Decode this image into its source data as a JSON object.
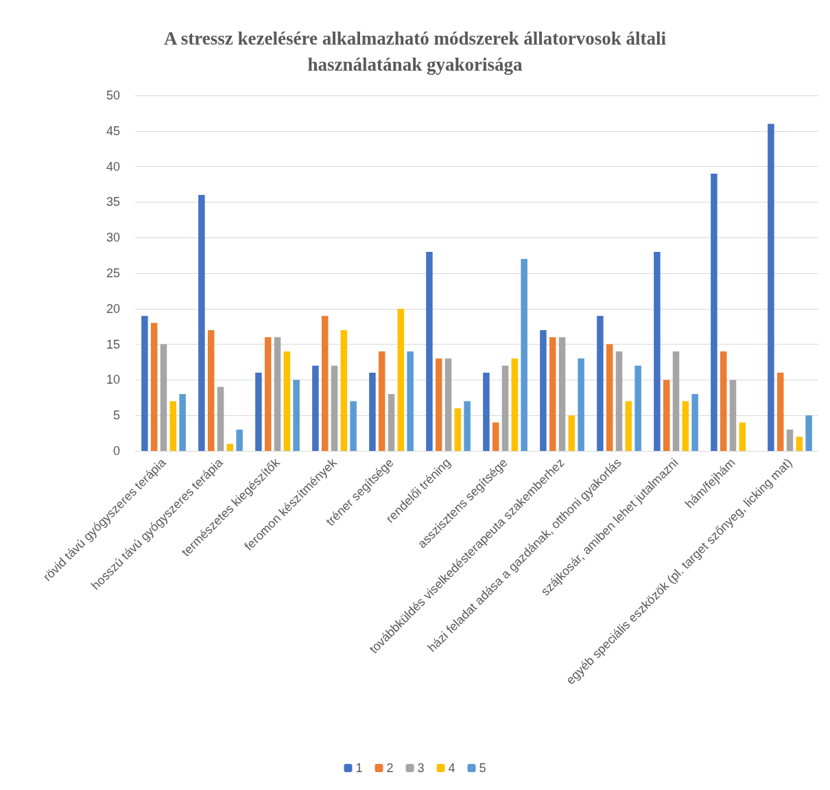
{
  "chart_data": {
    "type": "bar",
    "title": "A stressz kezelésére alkalmazható módszerek állatorvosok általi\nhasználatának gyakorisága",
    "categories": [
      "rövid távú gyógyszeres terápia",
      "hosszú távú gyógyszeres terápia",
      "természetes kiegészítők",
      "feromon készítmények",
      "tréner segítsége",
      "rendelői tréning",
      "asszisztens segítsége",
      "továbbküldés viselkedésterapeuta szakemberhez",
      "házi feladat adása a gazdának, otthoni gyakorlás",
      "szájkosár, amiben lehet jutalmazni",
      "hám/fejhám",
      "egyéb speciális eszközök (pl. target szőnyeg, licking mat)"
    ],
    "series": [
      {
        "name": "1",
        "color": "#4472c4",
        "values": [
          19,
          36,
          11,
          12,
          11,
          28,
          11,
          17,
          19,
          28,
          39,
          46
        ]
      },
      {
        "name": "2",
        "color": "#ed7d31",
        "values": [
          18,
          17,
          16,
          19,
          14,
          13,
          4,
          16,
          15,
          10,
          14,
          11
        ]
      },
      {
        "name": "3",
        "color": "#a5a5a5",
        "values": [
          15,
          9,
          16,
          12,
          8,
          13,
          12,
          16,
          14,
          14,
          10,
          3
        ]
      },
      {
        "name": "4",
        "color": "#ffc000",
        "values": [
          7,
          1,
          14,
          17,
          20,
          6,
          13,
          5,
          7,
          7,
          4,
          2
        ]
      },
      {
        "name": "5",
        "color": "#5b9bd5",
        "values": [
          8,
          3,
          10,
          7,
          14,
          7,
          27,
          13,
          12,
          8,
          0,
          5
        ]
      }
    ],
    "ylim": [
      0,
      50
    ],
    "yticks": [
      0,
      5,
      10,
      15,
      20,
      25,
      30,
      35,
      40,
      45,
      50
    ],
    "grid": "y",
    "legend": "bottom"
  }
}
